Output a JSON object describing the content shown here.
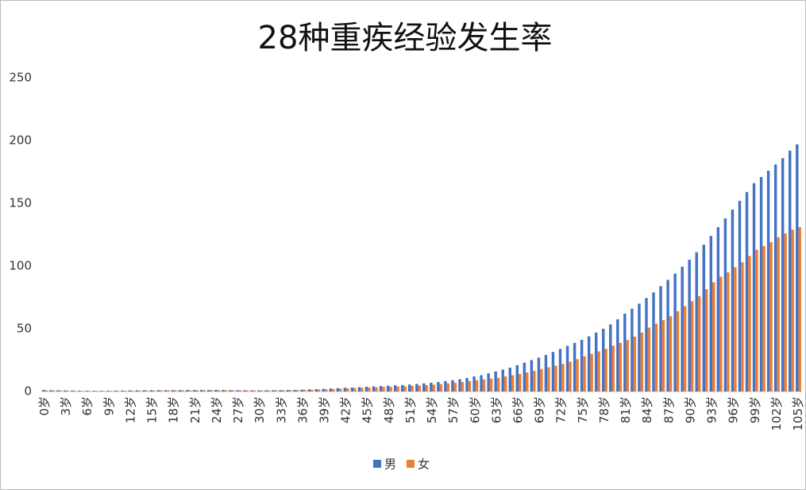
{
  "chart_data": {
    "type": "bar",
    "title": "28种重疾经验发生率",
    "categories": [
      "0岁",
      null,
      null,
      "3岁",
      null,
      null,
      "6岁",
      null,
      null,
      "9岁",
      null,
      null,
      "12岁",
      null,
      null,
      "15岁",
      null,
      null,
      "18岁",
      null,
      null,
      "21岁",
      null,
      null,
      "24岁",
      null,
      null,
      "27岁",
      null,
      null,
      "30岁",
      null,
      null,
      "33岁",
      null,
      null,
      "36岁",
      null,
      null,
      "39岁",
      null,
      null,
      "42岁",
      null,
      null,
      "45岁",
      null,
      null,
      "48岁",
      null,
      null,
      "51岁",
      null,
      null,
      "54岁",
      null,
      null,
      "57岁",
      null,
      null,
      "60岁",
      null,
      null,
      "63岁",
      null,
      null,
      "66岁",
      null,
      null,
      "69岁",
      null,
      null,
      "72岁",
      null,
      null,
      "75岁",
      null,
      null,
      "78岁",
      null,
      null,
      "81岁",
      null,
      null,
      "84岁",
      null,
      null,
      "87岁",
      null,
      null,
      "90岁",
      null,
      null,
      "93岁",
      null,
      null,
      "96岁",
      null,
      null,
      "99岁",
      null,
      null,
      "102岁",
      null,
      null,
      "105岁"
    ],
    "series": [
      {
        "name": "男",
        "color": "#4472c4",
        "values": [
          1.2,
          1.1,
          1,
          0.9,
          0.8,
          0.7,
          0.6,
          0.6,
          0.6,
          0.6,
          0.7,
          0.8,
          0.9,
          1,
          1,
          1.1,
          1.1,
          1.1,
          1.1,
          1.2,
          1.2,
          1.2,
          1.2,
          1.2,
          1.2,
          1.2,
          1.1,
          1,
          0.9,
          0.9,
          0.9,
          1,
          1,
          1.1,
          1.2,
          1.3,
          1.5,
          1.7,
          1.9,
          2.1,
          2.4,
          2.7,
          3,
          3.2,
          3.5,
          3.8,
          4.1,
          4.4,
          4.7,
          5,
          5.2,
          5.6,
          6,
          6.5,
          7,
          7.6,
          8.3,
          9,
          9.8,
          10.8,
          12,
          13,
          14.5,
          16,
          17.5,
          19,
          21,
          23,
          25,
          27,
          29.2,
          31.5,
          34,
          36.4,
          38.8,
          41.2,
          44,
          47,
          50,
          53.5,
          57.5,
          62,
          66,
          70,
          74.5,
          79,
          84,
          89,
          94,
          99.5,
          105,
          111,
          117,
          124,
          131,
          138,
          145,
          152,
          159,
          166,
          171,
          176,
          181,
          186,
          192,
          197
        ]
      },
      {
        "name": "女",
        "color": "#ed7d31",
        "values": [
          1,
          0.9,
          0.8,
          0.7,
          0.6,
          0.5,
          0.5,
          0.5,
          0.5,
          0.5,
          0.6,
          0.6,
          0.7,
          0.7,
          0.8,
          0.8,
          0.9,
          0.9,
          1,
          1,
          1,
          1.1,
          1.1,
          1.1,
          1.1,
          1.1,
          1,
          1,
          0.9,
          0.9,
          0.9,
          1,
          1,
          1.1,
          1.2,
          1.3,
          1.4,
          1.5,
          1.6,
          1.8,
          2,
          2.3,
          2.6,
          2.8,
          3,
          3.2,
          3.4,
          3.6,
          3.8,
          4,
          4.2,
          4.5,
          4.8,
          5.1,
          5.5,
          5.9,
          6.4,
          7,
          7.6,
          8.3,
          9,
          9.6,
          10.3,
          11,
          12,
          13,
          14,
          15.2,
          16.5,
          18,
          19.3,
          20.6,
          22,
          23.8,
          25.8,
          28,
          30,
          32,
          34,
          36.5,
          38.8,
          41,
          43.8,
          47,
          51,
          54,
          57,
          60,
          64,
          68,
          72,
          76,
          81.5,
          87,
          91.5,
          95,
          99,
          103,
          108,
          113,
          116,
          119,
          123,
          126,
          129,
          131
        ]
      }
    ],
    "ylim": [
      0,
      250
    ],
    "yticks": [
      0,
      50,
      100,
      150,
      200,
      250
    ],
    "grid": false
  }
}
